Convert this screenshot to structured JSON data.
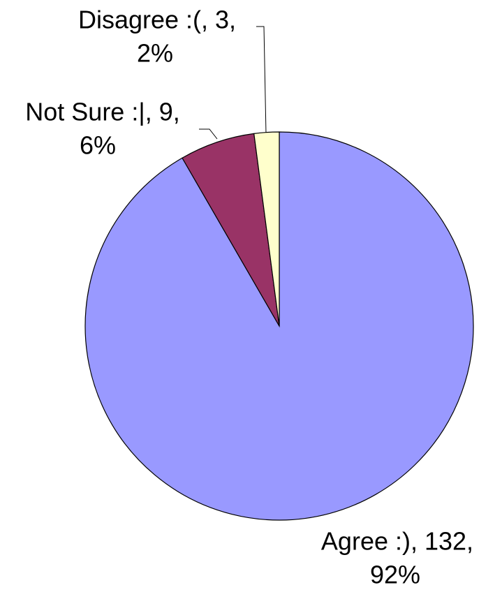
{
  "chart_data": {
    "type": "pie",
    "values": [
      132,
      9,
      3
    ],
    "value_labels": [
      [
        "Agree :), 132,",
        "92%"
      ],
      [
        "Not Sure :|, 9,",
        "6%"
      ],
      [
        "Disagree :(, 3,",
        "2%"
      ]
    ],
    "colors": [
      "#9999ff",
      "#993366",
      "#ffffcc"
    ]
  }
}
